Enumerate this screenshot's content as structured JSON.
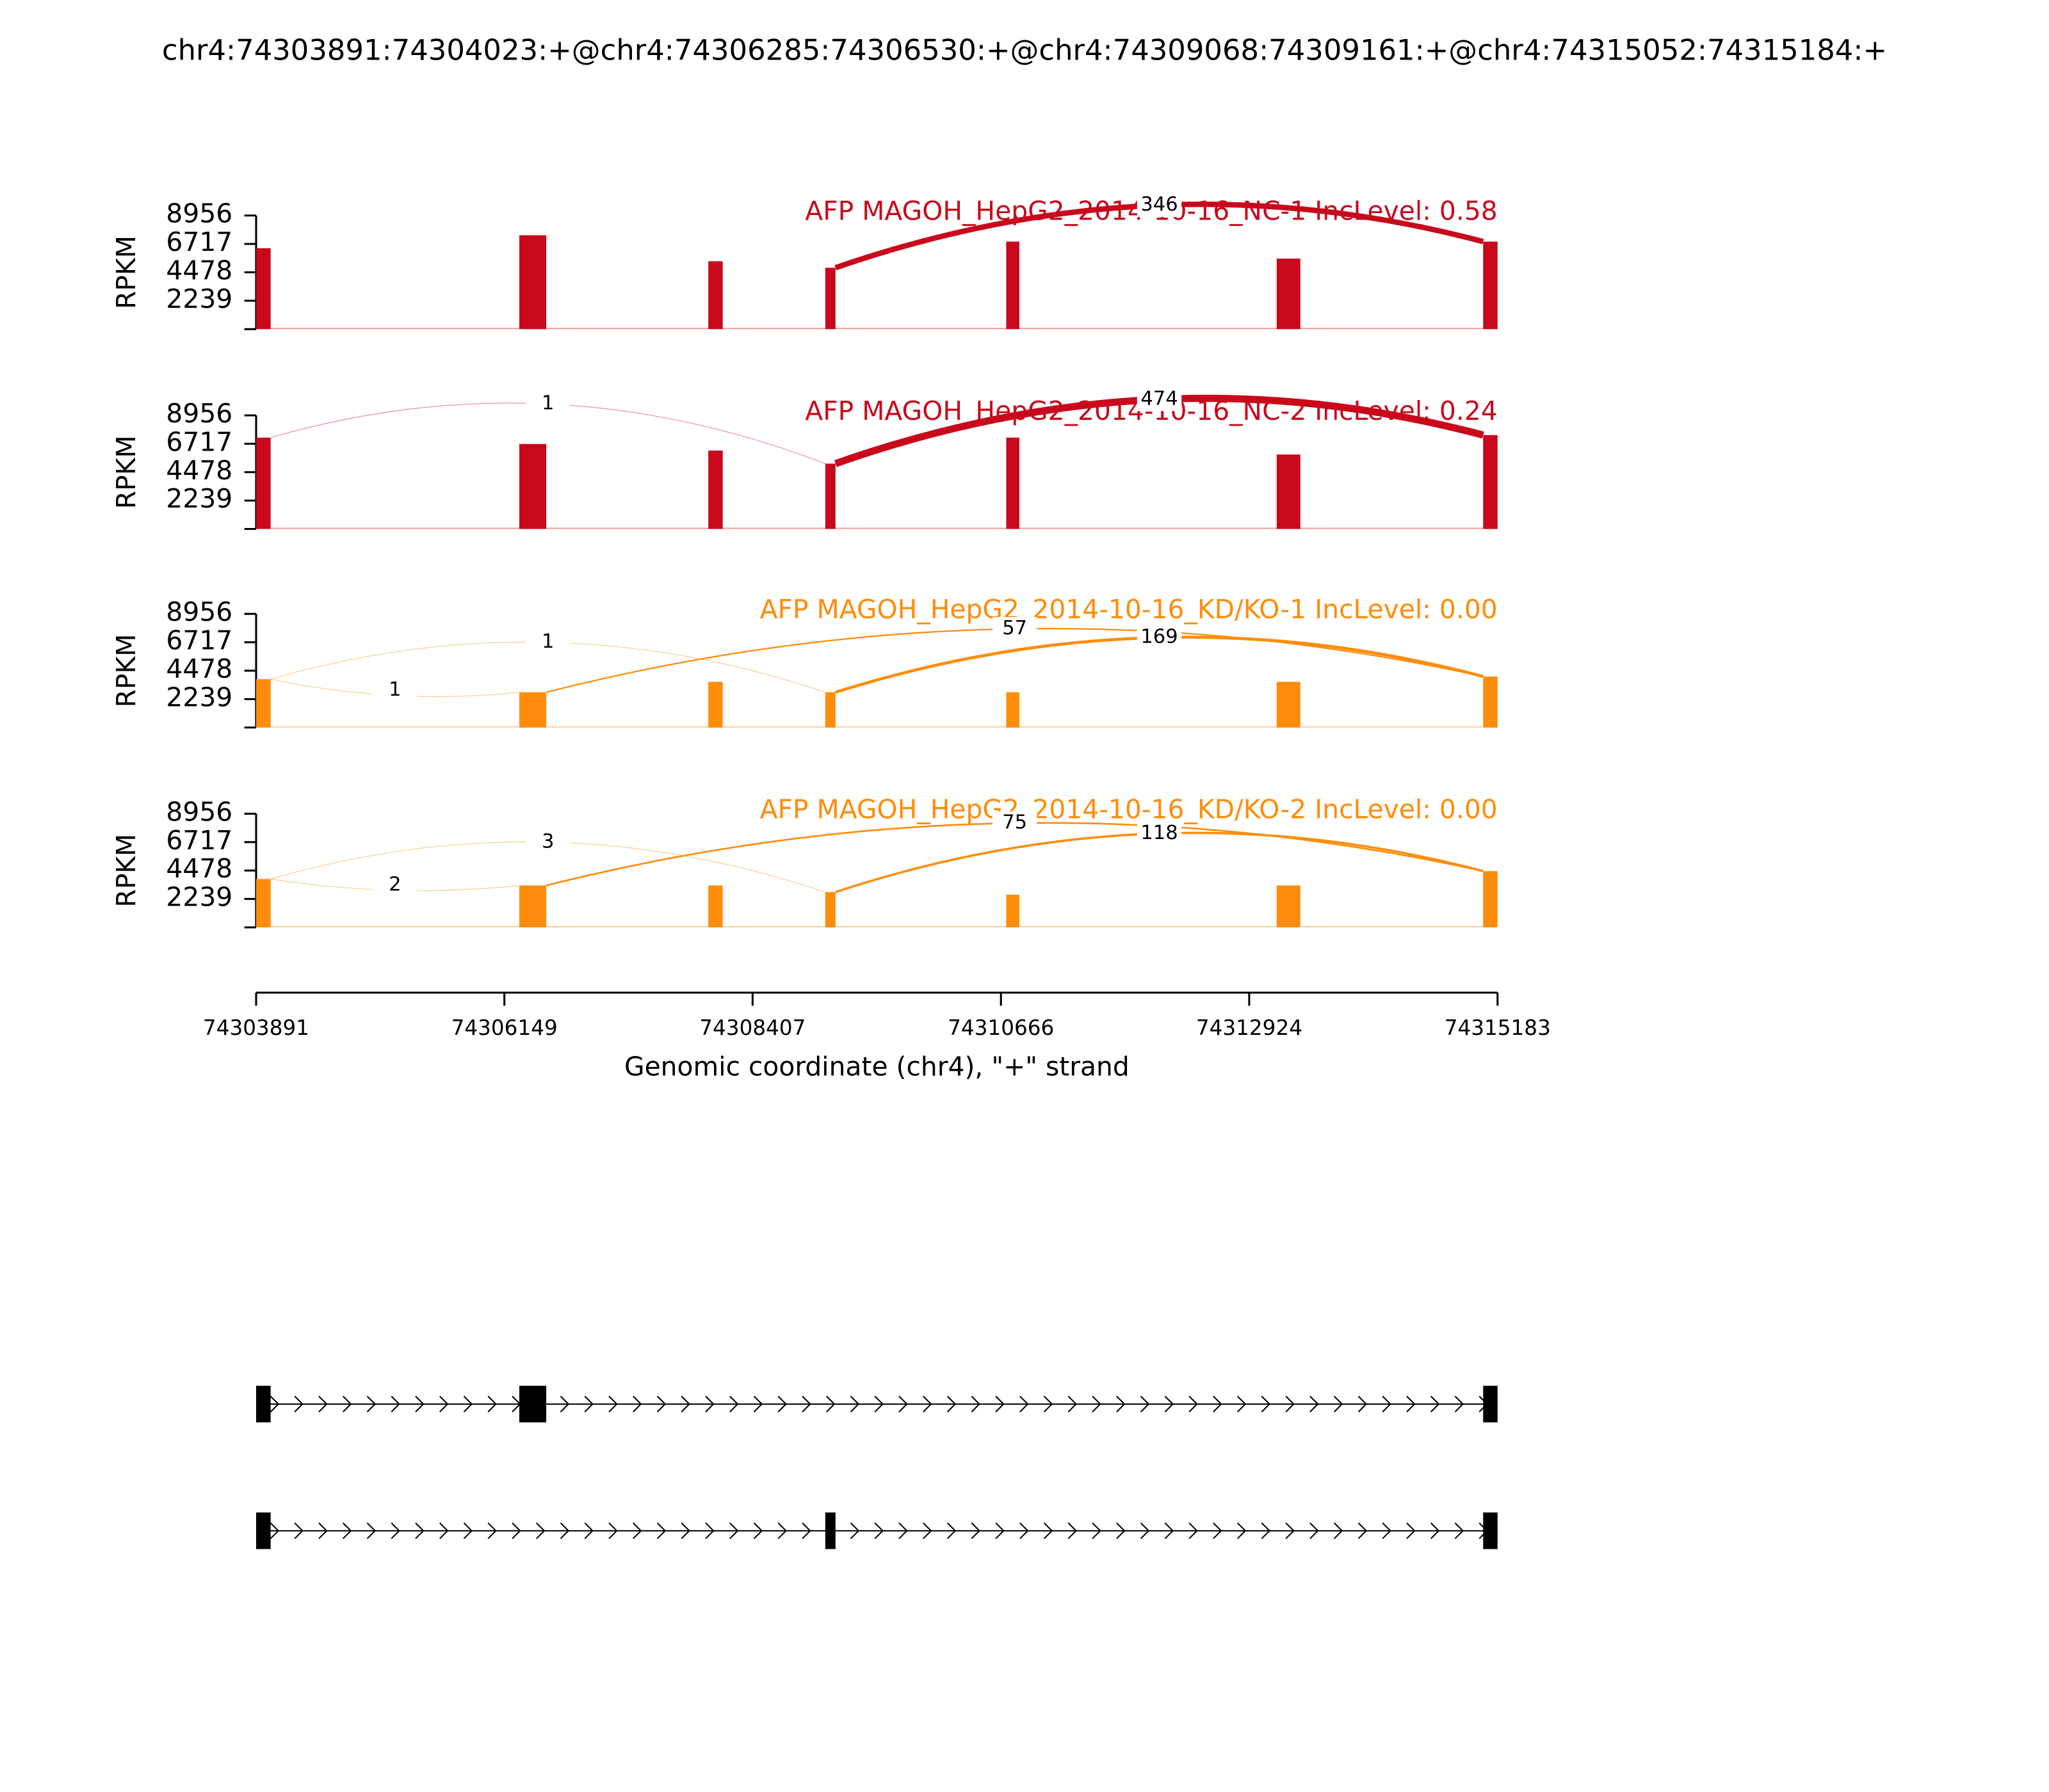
{
  "chart_data": {
    "type": "sashimi",
    "title": "chr4:74303891:74304023:+@chr4:74306285:74306530:+@chr4:74309068:74309161:+@chr4:74315052:74315184:+",
    "xlabel": "Genomic coordinate (chr4), \"+\" strand",
    "xlim": [
      74303891,
      74315183
    ],
    "xticks": [
      74303891,
      74306149,
      74308407,
      74310666,
      74312924,
      74315183
    ],
    "exons": [
      [
        74303891,
        74304023
      ],
      [
        74306285,
        74306530
      ],
      [
        74308004,
        74308135
      ],
      [
        74309068,
        74309161
      ],
      [
        74310714,
        74310833
      ],
      [
        74313174,
        74313389
      ],
      [
        74315052,
        74315183
      ]
    ],
    "tracks": [
      {
        "label": "AFP MAGOH_HepG2_2014-10-16_NC-1 IncLevel: 0.58",
        "color": "#c9081c",
        "ylabel": "RPKM",
        "ylim": [
          0,
          8956
        ],
        "yticks": [
          2239,
          4478,
          6717,
          8956
        ],
        "coverage": [
          6380,
          7400,
          5350,
          4840,
          6900,
          5560,
          6900
        ],
        "junctions": [
          {
            "start": 74309161,
            "end": 74315052,
            "count": 346
          }
        ]
      },
      {
        "label": "AFP MAGOH_HepG2_2014-10-16_NC-2 IncLevel: 0.24",
        "color": "#c9081c",
        "ylabel": "RPKM",
        "ylim": [
          0,
          8956
        ],
        "yticks": [
          2239,
          4478,
          6717,
          8956
        ],
        "coverage": [
          7200,
          6700,
          6180,
          5150,
          7200,
          5870,
          7400
        ],
        "junctions": [
          {
            "start": 74304023,
            "end": 74309068,
            "count": 1
          },
          {
            "start": 74309161,
            "end": 74315052,
            "count": 474
          }
        ]
      },
      {
        "label": "AFP MAGOH_HepG2_2014-10-16_KD/KO-1 IncLevel: 0.00",
        "color": "#ff8c0a",
        "ylabel": "RPKM",
        "ylim": [
          0,
          8956
        ],
        "yticks": [
          2239,
          4478,
          6717,
          8956
        ],
        "coverage": [
          3810,
          2780,
          3600,
          2780,
          2780,
          3600,
          4020
        ],
        "junctions": [
          {
            "start": 74304023,
            "end": 74306285,
            "count": 1
          },
          {
            "start": 74304023,
            "end": 74309068,
            "count": 1
          },
          {
            "start": 74306530,
            "end": 74315052,
            "count": 57
          },
          {
            "start": 74309161,
            "end": 74315052,
            "count": 169
          }
        ]
      },
      {
        "label": "AFP MAGOH_HepG2_2014-10-16_KD/KO-2 IncLevel: 0.00",
        "color": "#ff8c0a",
        "ylabel": "RPKM",
        "ylim": [
          0,
          8956
        ],
        "yticks": [
          2239,
          4478,
          6717,
          8956
        ],
        "coverage": [
          3810,
          3300,
          3300,
          2780,
          2570,
          3300,
          4430
        ],
        "junctions": [
          {
            "start": 74304023,
            "end": 74306285,
            "count": 2
          },
          {
            "start": 74304023,
            "end": 74309068,
            "count": 3
          },
          {
            "start": 74306530,
            "end": 74315052,
            "count": 75
          },
          {
            "start": 74309161,
            "end": 74315052,
            "count": 118
          }
        ]
      }
    ],
    "transcripts": [
      {
        "exons": [
          [
            74303891,
            74304023
          ],
          [
            74306285,
            74306530
          ],
          [
            74315052,
            74315183
          ]
        ]
      },
      {
        "exons": [
          [
            74303891,
            74304023
          ],
          [
            74309068,
            74309161
          ],
          [
            74315052,
            74315183
          ]
        ]
      }
    ]
  }
}
